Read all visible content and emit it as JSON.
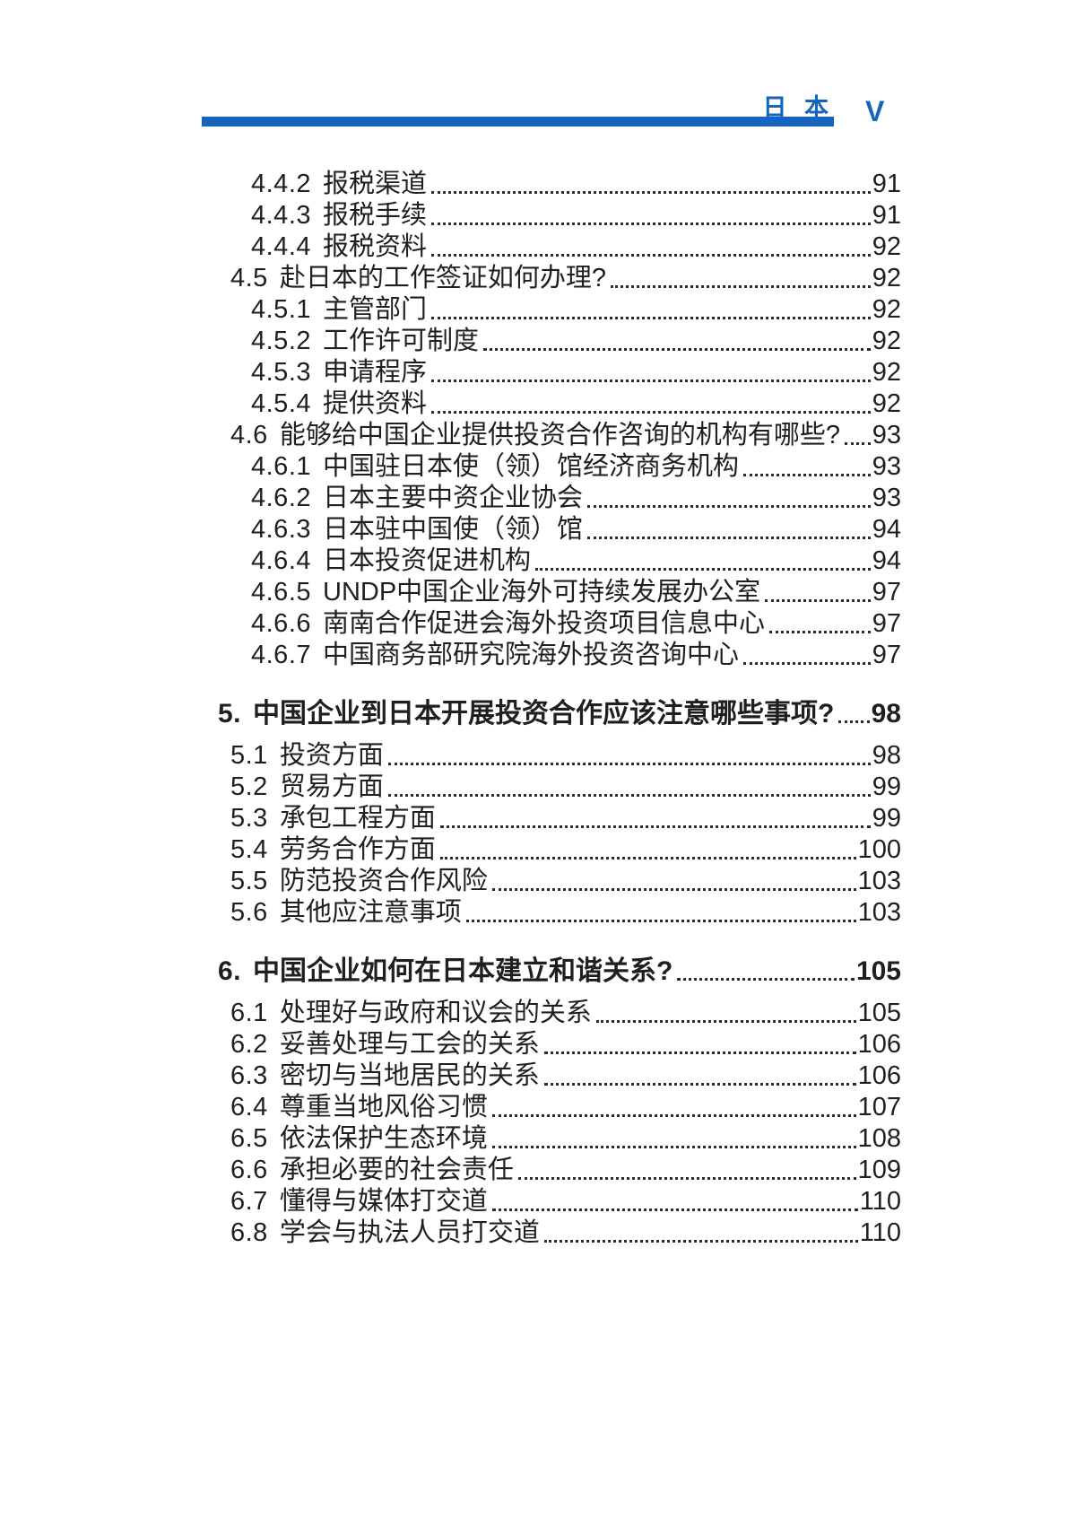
{
  "colors": {
    "accent": "#1565c0",
    "dots": "#2b2b2b"
  },
  "header": {
    "doc_title": "日 本",
    "page_number": "V"
  },
  "toc": {
    "entries": [
      {
        "level": 3,
        "num": "4.4.2",
        "title": "报税渠道",
        "page": "91"
      },
      {
        "level": 3,
        "num": "4.4.3",
        "title": "报税手续",
        "page": "91"
      },
      {
        "level": 3,
        "num": "4.4.4",
        "title": "报税资料",
        "page": "92"
      },
      {
        "level": 2,
        "num": "4.5",
        "title": "赴日本的工作签证如何办理?",
        "page": "92"
      },
      {
        "level": 3,
        "num": "4.5.1",
        "title": "主管部门",
        "page": "92"
      },
      {
        "level": 3,
        "num": "4.5.2",
        "title": "工作许可制度",
        "page": "92"
      },
      {
        "level": 3,
        "num": "4.5.3",
        "title": "申请程序",
        "page": "92"
      },
      {
        "level": 3,
        "num": "4.5.4",
        "title": "提供资料",
        "page": "92"
      },
      {
        "level": 2,
        "num": "4.6",
        "title": "能够给中国企业提供投资合作咨询的机构有哪些?",
        "page": "93"
      },
      {
        "level": 3,
        "num": "4.6.1",
        "title": "中国驻日本使（领）馆经济商务机构",
        "page": "93"
      },
      {
        "level": 3,
        "num": "4.6.2",
        "title": "日本主要中资企业协会",
        "page": "93"
      },
      {
        "level": 3,
        "num": "4.6.3",
        "title": "日本驻中国使（领）馆",
        "page": "94"
      },
      {
        "level": 3,
        "num": "4.6.4",
        "title": "日本投资促进机构",
        "page": "94"
      },
      {
        "level": 3,
        "num": "4.6.5",
        "title": "UNDP中国企业海外可持续发展办公室",
        "page": "97"
      },
      {
        "level": 3,
        "num": "4.6.6",
        "title": "南南合作促进会海外投资项目信息中心",
        "page": "97"
      },
      {
        "level": 3,
        "num": "4.6.7",
        "title": "中国商务部研究院海外投资咨询中心",
        "page": "97"
      },
      {
        "level": 1,
        "num": "5.",
        "title": "中国企业到日本开展投资合作应该注意哪些事项?",
        "page": "98"
      },
      {
        "level": 2,
        "num": "5.1",
        "title": "投资方面",
        "page": "98"
      },
      {
        "level": 2,
        "num": "5.2",
        "title": "贸易方面",
        "page": "99"
      },
      {
        "level": 2,
        "num": "5.3",
        "title": "承包工程方面",
        "page": "99"
      },
      {
        "level": 2,
        "num": "5.4",
        "title": "劳务合作方面",
        "page": "100"
      },
      {
        "level": 2,
        "num": "5.5",
        "title": "防范投资合作风险",
        "page": "103"
      },
      {
        "level": 2,
        "num": "5.6",
        "title": "其他应注意事项",
        "page": "103"
      },
      {
        "level": 1,
        "num": "6.",
        "title": "中国企业如何在日本建立和谐关系?",
        "page": "105"
      },
      {
        "level": 2,
        "num": "6.1",
        "title": "处理好与政府和议会的关系",
        "page": "105"
      },
      {
        "level": 2,
        "num": "6.2",
        "title": "妥善处理与工会的关系",
        "page": "106"
      },
      {
        "level": 2,
        "num": "6.3",
        "title": "密切与当地居民的关系",
        "page": "106"
      },
      {
        "level": 2,
        "num": "6.4",
        "title": "尊重当地风俗习惯",
        "page": "107"
      },
      {
        "level": 2,
        "num": "6.5",
        "title": "依法保护生态环境",
        "page": "108"
      },
      {
        "level": 2,
        "num": "6.6",
        "title": "承担必要的社会责任",
        "page": "109"
      },
      {
        "level": 2,
        "num": "6.7",
        "title": "懂得与媒体打交道",
        "page": "110"
      },
      {
        "level": 2,
        "num": "6.8",
        "title": "学会与执法人员打交道",
        "page": "110"
      }
    ]
  }
}
